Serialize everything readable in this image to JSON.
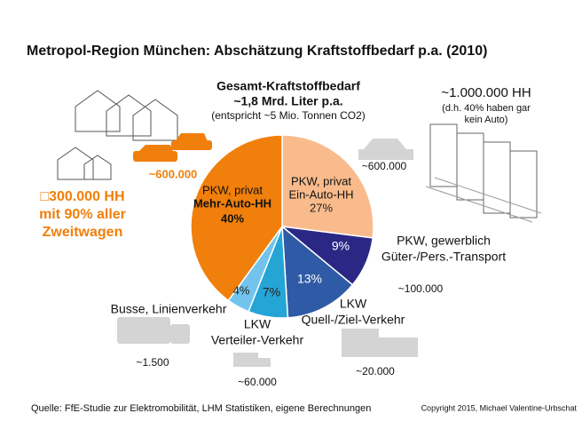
{
  "chart_data": {
    "type": "pie",
    "title": "Metropol-Region München: Abschätzung Kraftstoffbedarf p.a. (2010)",
    "subtitle": [
      "Gesamt-Kraftstoffbedarf",
      "~1,8 Mrd. Liter p.a.",
      "(entspricht ~5 Mio. Tonnen CO2)"
    ],
    "categories": [
      [
        "PKW, privat",
        "Ein-Auto-HH"
      ],
      [
        "PKW, gewerblich",
        "Güter-/Pers.-Transport"
      ],
      [
        "LKW",
        "Quell-/Ziel-Verkehr"
      ],
      [
        "LKW",
        "Verteiler-Verkehr"
      ],
      [
        "Busse, Linienverkehr"
      ],
      [
        "PKW, privat",
        "Mehr-Auto-HH"
      ]
    ],
    "values": [
      27,
      9,
      13,
      7,
      4,
      40
    ],
    "value_labels": [
      "27%",
      "9%",
      "13%",
      "7%",
      "4%",
      "40%"
    ],
    "colors": [
      "#f9bb8c",
      "#2a2884",
      "#2f5ba6",
      "#25a5d5",
      "#72c4ec",
      "#f07f0b"
    ],
    "annotations": [
      "~600.000",
      "~600.000",
      "~1.000.000 HH",
      "(d.h. 40% haben gar",
      "kein Auto)",
      "□300.000 HH",
      "mit 90% aller",
      "Zweitwagen",
      "~100.000",
      "~20.000",
      "~60.000",
      "~1.500"
    ],
    "source": "Quelle: FfE-Studie zur Elektromobilität, LHM Statistiken, eigene Berechnungen",
    "copyright": "Copyright 2015, Michael Valentine-Urbschat"
  }
}
